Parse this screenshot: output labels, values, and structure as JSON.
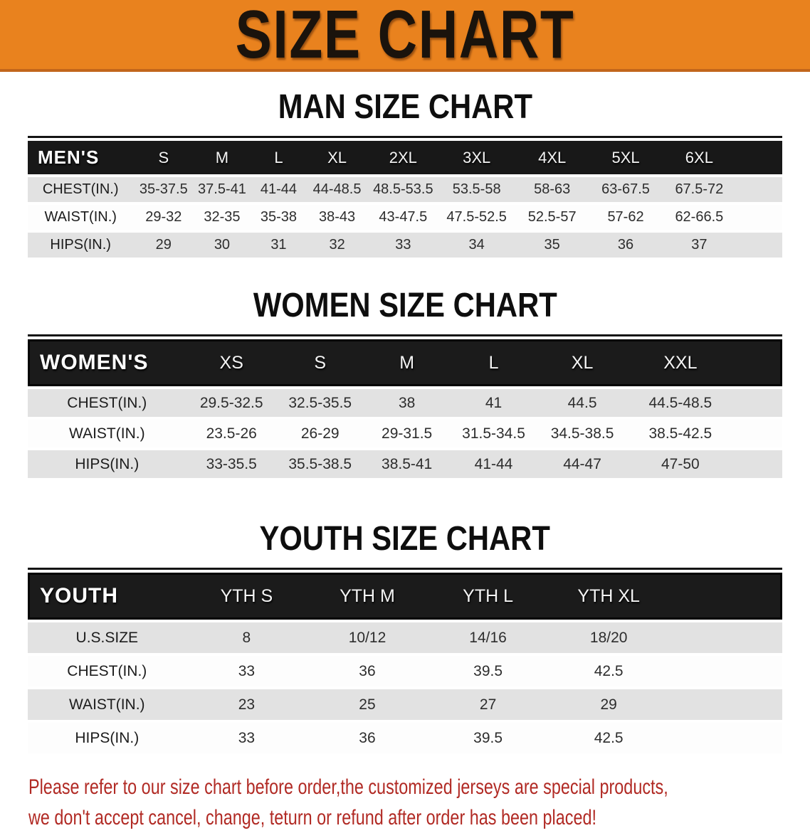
{
  "banner": {
    "title": "SIZE CHART"
  },
  "men_chart": {
    "heading": "MAN SIZE CHART",
    "header_label": "MEN'S",
    "sizes": [
      "S",
      "M",
      "L",
      "XL",
      "2XL",
      "3XL",
      "4XL",
      "5XL",
      "6XL"
    ],
    "rows": [
      {
        "label": "CHEST(IN.)",
        "values": [
          "35-37.5",
          "37.5-41",
          "41-44",
          "44-48.5",
          "48.5-53.5",
          "53.5-58",
          "58-63",
          "63-67.5",
          "67.5-72"
        ]
      },
      {
        "label": "WAIST(IN.)",
        "values": [
          "29-32",
          "32-35",
          "35-38",
          "38-43",
          "43-47.5",
          "47.5-52.5",
          "52.5-57",
          "57-62",
          "62-66.5"
        ]
      },
      {
        "label": "HIPS(IN.)",
        "values": [
          "29",
          "30",
          "31",
          "32",
          "33",
          "34",
          "35",
          "36",
          "37"
        ]
      }
    ]
  },
  "women_chart": {
    "heading": "WOMEN SIZE CHART",
    "header_label": "WOMEN'S",
    "sizes": [
      "XS",
      "S",
      "M",
      "L",
      "XL",
      "XXL"
    ],
    "rows": [
      {
        "label": "CHEST(IN.)",
        "values": [
          "29.5-32.5",
          "32.5-35.5",
          "38",
          "41",
          "44.5",
          "44.5-48.5"
        ]
      },
      {
        "label": "WAIST(IN.)",
        "values": [
          "23.5-26",
          "26-29",
          "29-31.5",
          "31.5-34.5",
          "34.5-38.5",
          "38.5-42.5"
        ]
      },
      {
        "label": "HIPS(IN.)",
        "values": [
          "33-35.5",
          "35.5-38.5",
          "38.5-41",
          "41-44",
          "44-47",
          "47-50"
        ]
      }
    ]
  },
  "youth_chart": {
    "heading": "YOUTH SIZE CHART",
    "header_label": "YOUTH",
    "sizes": [
      "YTH S",
      "YTH M",
      "YTH L",
      "YTH XL"
    ],
    "rows": [
      {
        "label": "U.S.SIZE",
        "values": [
          "8",
          "10/12",
          "14/16",
          "18/20"
        ]
      },
      {
        "label": "CHEST(IN.)",
        "values": [
          "33",
          "36",
          "39.5",
          "42.5"
        ]
      },
      {
        "label": "WAIST(IN.)",
        "values": [
          "23",
          "25",
          "27",
          "29"
        ]
      },
      {
        "label": "HIPS(IN.)",
        "values": [
          "33",
          "36",
          "39.5",
          "42.5"
        ]
      }
    ]
  },
  "disclaimer": {
    "line1": "Please refer to our size chart before order,the customized jerseys are special products,",
    "line2": "we don't accept cancel, change, teturn or refund after order has been placed!"
  },
  "colors": {
    "banner_bg": "#E9821E",
    "banner_border": "#C2661B",
    "banner_text": "#1A130C",
    "header_bar_bg": "#181818",
    "header_bar_text": "#F4F4F4",
    "row_alt_bg": "#E2E2E2",
    "body_text": "#2D2D2D",
    "disclaimer_red": "#B12A24"
  }
}
